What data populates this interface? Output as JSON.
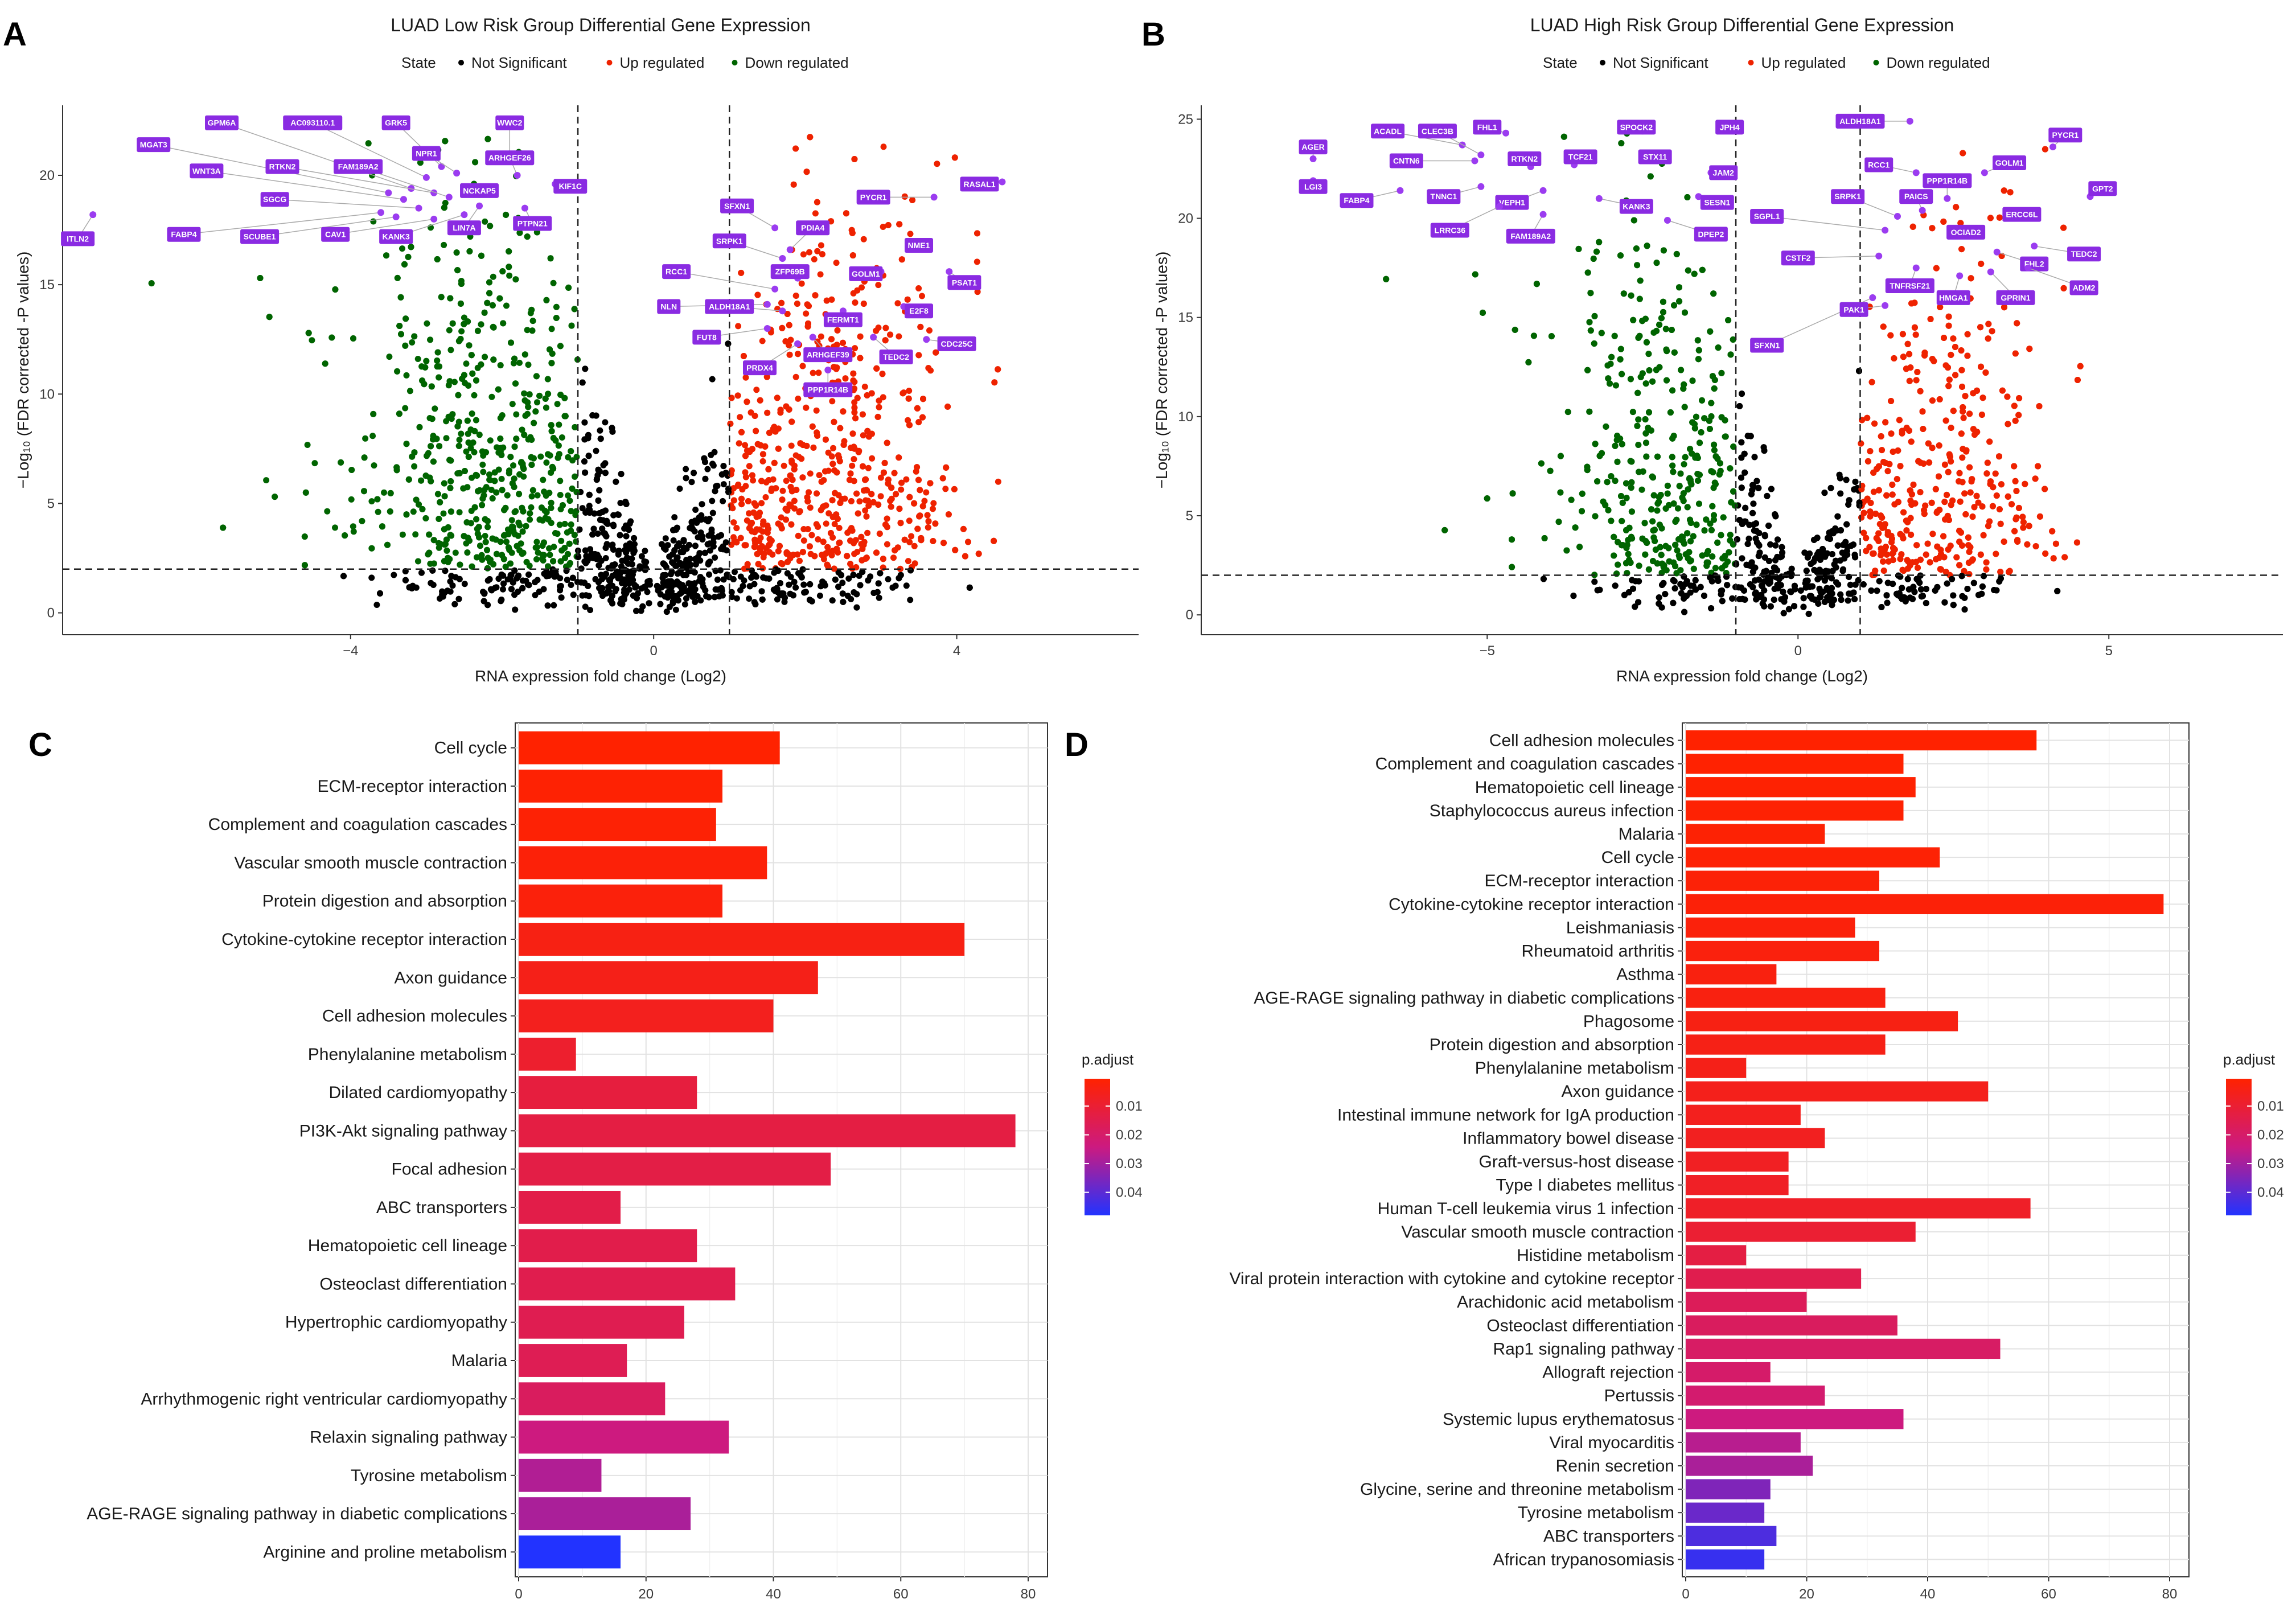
{
  "panels": [
    "A",
    "B",
    "C",
    "D"
  ],
  "chart_data": [
    {
      "type": "scatter",
      "panel": "A",
      "title": "LUAD Low Risk Group Differential Gene Expression",
      "xlabel": "RNA expression fold change (Log2)",
      "ylabel": "−Log₁₀ (FDR corrected -P values)",
      "xlim": [
        -7.8,
        6.4
      ],
      "ylim": [
        -1,
        23.2
      ],
      "xticks": [
        -4,
        0,
        4
      ],
      "yticks": [
        0,
        5,
        10,
        15,
        20
      ],
      "thresholds": {
        "x": [
          -1,
          1
        ],
        "y": 2
      },
      "legend": {
        "title": "State",
        "entries": [
          "Not Significant",
          "Up regulated",
          "Down regulated"
        ],
        "colors": [
          "#000000",
          "#ee2200",
          "#006400"
        ]
      },
      "labeled_genes": [
        {
          "gene": "GPM6A",
          "x": -3.2,
          "y": 19.4,
          "lx": -5.7,
          "ly": 22.4
        },
        {
          "gene": "AC093110.1",
          "x": -3.0,
          "y": 19.9,
          "lx": -4.5,
          "ly": 22.4
        },
        {
          "gene": "GRK5",
          "x": -2.8,
          "y": 20.4,
          "lx": -3.4,
          "ly": 22.4
        },
        {
          "gene": "WWC2",
          "x": -1.9,
          "y": 20.7,
          "lx": -1.9,
          "ly": 22.4
        },
        {
          "gene": "MGAT3",
          "x": -3.5,
          "y": 19.2,
          "lx": -6.6,
          "ly": 21.4
        },
        {
          "gene": "NPR1",
          "x": -2.6,
          "y": 20.1,
          "lx": -3.0,
          "ly": 21.0
        },
        {
          "gene": "WNT3A",
          "x": -3.3,
          "y": 18.9,
          "lx": -5.9,
          "ly": 20.2
        },
        {
          "gene": "RTKN2",
          "x": -2.9,
          "y": 19.2,
          "lx": -4.9,
          "ly": 20.4
        },
        {
          "gene": "FAM189A2",
          "x": -2.7,
          "y": 19.0,
          "lx": -3.9,
          "ly": 20.4
        },
        {
          "gene": "ARHGEF26",
          "x": -1.8,
          "y": 20.0,
          "lx": -1.9,
          "ly": 20.8
        },
        {
          "gene": "KIF1C",
          "x": -1.3,
          "y": 19.6,
          "lx": -1.1,
          "ly": 19.5
        },
        {
          "gene": "NCKAP5",
          "x": -2.1,
          "y": 19.4,
          "lx": -2.3,
          "ly": 19.3
        },
        {
          "gene": "SGCG",
          "x": -3.1,
          "y": 18.5,
          "lx": -5.0,
          "ly": 18.9
        },
        {
          "gene": "PTPN21",
          "x": -1.7,
          "y": 18.5,
          "lx": -1.6,
          "ly": 17.8
        },
        {
          "gene": "FABP4",
          "x": -3.6,
          "y": 18.3,
          "lx": -6.2,
          "ly": 17.3
        },
        {
          "gene": "SCUBE1",
          "x": -3.4,
          "y": 18.1,
          "lx": -5.2,
          "ly": 17.2
        },
        {
          "gene": "CAV1",
          "x": -2.9,
          "y": 18.0,
          "lx": -4.2,
          "ly": 17.3
        },
        {
          "gene": "KANK3",
          "x": -2.5,
          "y": 18.2,
          "lx": -3.4,
          "ly": 17.2
        },
        {
          "gene": "LIN7A",
          "x": -2.3,
          "y": 18.6,
          "lx": -2.5,
          "ly": 17.6
        },
        {
          "gene": "ITLN2",
          "x": -7.4,
          "y": 18.2,
          "lx": -7.6,
          "ly": 17.1
        },
        {
          "gene": "SFXN1",
          "x": 1.6,
          "y": 17.6,
          "lx": 1.1,
          "ly": 18.6
        },
        {
          "gene": "PDIA4",
          "x": 1.8,
          "y": 16.6,
          "lx": 2.1,
          "ly": 17.6
        },
        {
          "gene": "PYCR1",
          "x": 3.7,
          "y": 19.0,
          "lx": 2.9,
          "ly": 19.0
        },
        {
          "gene": "RASAL1",
          "x": 4.6,
          "y": 19.7,
          "lx": 4.3,
          "ly": 19.6
        },
        {
          "gene": "SRPK1",
          "x": 1.7,
          "y": 16.2,
          "lx": 1.0,
          "ly": 17.0
        },
        {
          "gene": "NME1",
          "x": 3.6,
          "y": 16.8,
          "lx": 3.5,
          "ly": 16.8
        },
        {
          "gene": "ZFP69B",
          "x": 1.9,
          "y": 15.3,
          "lx": 1.8,
          "ly": 15.6
        },
        {
          "gene": "GOLM1",
          "x": 3.0,
          "y": 15.6,
          "lx": 2.8,
          "ly": 15.5
        },
        {
          "gene": "RCC1",
          "x": 1.6,
          "y": 14.8,
          "lx": 0.3,
          "ly": 15.6
        },
        {
          "gene": "PSAT1",
          "x": 3.9,
          "y": 15.6,
          "lx": 4.1,
          "ly": 15.1
        },
        {
          "gene": "NLN",
          "x": 1.5,
          "y": 14.1,
          "lx": 0.2,
          "ly": 14.0
        },
        {
          "gene": "ALDH18A1",
          "x": 1.7,
          "y": 13.8,
          "lx": 1.0,
          "ly": 14.0
        },
        {
          "gene": "FERMT1",
          "x": 2.5,
          "y": 13.8,
          "lx": 2.5,
          "ly": 13.4
        },
        {
          "gene": "E2F8",
          "x": 3.3,
          "y": 14.0,
          "lx": 3.5,
          "ly": 13.8
        },
        {
          "gene": "FUT8",
          "x": 1.5,
          "y": 13.0,
          "lx": 0.7,
          "ly": 12.6
        },
        {
          "gene": "ARHGEF39",
          "x": 2.1,
          "y": 12.6,
          "lx": 2.3,
          "ly": 11.8
        },
        {
          "gene": "TEDC2",
          "x": 2.9,
          "y": 12.6,
          "lx": 3.2,
          "ly": 11.7
        },
        {
          "gene": "CDC25C",
          "x": 3.6,
          "y": 12.5,
          "lx": 4.0,
          "ly": 12.3
        },
        {
          "gene": "PRDX4",
          "x": 1.9,
          "y": 12.3,
          "lx": 1.4,
          "ly": 11.2
        },
        {
          "gene": "PPP1R14B",
          "x": 2.3,
          "y": 11.1,
          "lx": 2.3,
          "ly": 10.2
        }
      ]
    },
    {
      "type": "scatter",
      "panel": "B",
      "title": "LUAD High Risk Group Differential Gene Expression",
      "xlabel": "RNA expression fold change (Log2)",
      "ylabel": "−Log₁₀ (FDR corrected -P values)",
      "xlim": [
        -9.6,
        7.8
      ],
      "ylim": [
        -1,
        25.7
      ],
      "xticks": [
        -5,
        0,
        5
      ],
      "yticks": [
        0,
        5,
        10,
        15,
        20,
        25
      ],
      "thresholds": {
        "x": [
          -1,
          1
        ],
        "y": 2
      },
      "legend": {
        "title": "State",
        "entries": [
          "Not Significant",
          "Up regulated",
          "Down regulated"
        ],
        "colors": [
          "#000000",
          "#ee2200",
          "#006400"
        ]
      },
      "labeled_genes": [
        {
          "gene": "AGER",
          "x": -7.8,
          "y": 23.0,
          "lx": -7.8,
          "ly": 23.6
        },
        {
          "gene": "LGI3",
          "x": -7.8,
          "y": 21.9,
          "lx": -7.8,
          "ly": 21.6
        },
        {
          "gene": "ACADL",
          "x": -5.4,
          "y": 23.7,
          "lx": -6.6,
          "ly": 24.4
        },
        {
          "gene": "CLEC3B",
          "x": -5.1,
          "y": 23.2,
          "lx": -5.8,
          "ly": 24.4
        },
        {
          "gene": "FHL1",
          "x": -4.7,
          "y": 24.3,
          "lx": -5.0,
          "ly": 24.6
        },
        {
          "gene": "SPOCK2",
          "x": -2.5,
          "y": 24.4,
          "lx": -2.6,
          "ly": 24.6
        },
        {
          "gene": "JPH4",
          "x": -1.2,
          "y": 24.6,
          "lx": -1.1,
          "ly": 24.6
        },
        {
          "gene": "CNTN6",
          "x": -5.2,
          "y": 22.9,
          "lx": -6.3,
          "ly": 22.9
        },
        {
          "gene": "RTKN2",
          "x": -4.3,
          "y": 22.6,
          "lx": -4.4,
          "ly": 23.0
        },
        {
          "gene": "TCF21",
          "x": -3.6,
          "y": 22.7,
          "lx": -3.5,
          "ly": 23.1
        },
        {
          "gene": "STX11",
          "x": -2.5,
          "y": 23.0,
          "lx": -2.3,
          "ly": 23.1
        },
        {
          "gene": "JAM2",
          "x": -1.4,
          "y": 22.3,
          "lx": -1.2,
          "ly": 22.3
        },
        {
          "gene": "FABP4",
          "x": -6.4,
          "y": 21.4,
          "lx": -7.1,
          "ly": 20.9
        },
        {
          "gene": "TNNC1",
          "x": -5.1,
          "y": 21.6,
          "lx": -5.7,
          "ly": 21.1
        },
        {
          "gene": "VEPH1",
          "x": -4.1,
          "y": 21.4,
          "lx": -4.6,
          "ly": 20.8
        },
        {
          "gene": "KANK3",
          "x": -3.2,
          "y": 21.0,
          "lx": -2.6,
          "ly": 20.6
        },
        {
          "gene": "SESN1",
          "x": -1.6,
          "y": 21.1,
          "lx": -1.3,
          "ly": 20.8
        },
        {
          "gene": "LRRC36",
          "x": -4.8,
          "y": 20.6,
          "lx": -5.6,
          "ly": 19.4
        },
        {
          "gene": "FAM189A2",
          "x": -4.1,
          "y": 20.2,
          "lx": -4.3,
          "ly": 19.1
        },
        {
          "gene": "DPEP2",
          "x": -2.1,
          "y": 19.9,
          "lx": -1.4,
          "ly": 19.2
        },
        {
          "gene": "SFXN1",
          "x": 1.2,
          "y": 16.0,
          "lx": -0.5,
          "ly": 13.6
        },
        {
          "gene": "ALDH18A1",
          "x": 1.8,
          "y": 24.9,
          "lx": 1.0,
          "ly": 24.9
        },
        {
          "gene": "PYCR1",
          "x": 4.1,
          "y": 23.6,
          "lx": 4.3,
          "ly": 24.2
        },
        {
          "gene": "RCC1",
          "x": 1.9,
          "y": 22.3,
          "lx": 1.3,
          "ly": 22.7
        },
        {
          "gene": "GOLM1",
          "x": 3.0,
          "y": 22.3,
          "lx": 3.4,
          "ly": 22.8
        },
        {
          "gene": "PPP1R14B",
          "x": 2.4,
          "y": 21.0,
          "lx": 2.4,
          "ly": 21.9
        },
        {
          "gene": "GPT2",
          "x": 4.7,
          "y": 21.1,
          "lx": 4.9,
          "ly": 21.5
        },
        {
          "gene": "SRPK1",
          "x": 1.6,
          "y": 20.1,
          "lx": 0.8,
          "ly": 21.1
        },
        {
          "gene": "PAICS",
          "x": 2.0,
          "y": 20.4,
          "lx": 1.9,
          "ly": 21.1
        },
        {
          "gene": "SGPL1",
          "x": 1.4,
          "y": 19.4,
          "lx": -0.5,
          "ly": 20.1
        },
        {
          "gene": "ERCC6L",
          "x": 3.6,
          "y": 20.0,
          "lx": 3.6,
          "ly": 20.2
        },
        {
          "gene": "OCIAD2",
          "x": 2.6,
          "y": 19.2,
          "lx": 2.7,
          "ly": 19.3
        },
        {
          "gene": "CSTF2",
          "x": 1.3,
          "y": 18.1,
          "lx": 0.0,
          "ly": 18.0
        },
        {
          "gene": "FHL2",
          "x": 3.2,
          "y": 18.3,
          "lx": 3.8,
          "ly": 17.7
        },
        {
          "gene": "TEDC2",
          "x": 3.8,
          "y": 18.6,
          "lx": 4.6,
          "ly": 18.2
        },
        {
          "gene": "TNFRSF21",
          "x": 1.9,
          "y": 17.5,
          "lx": 1.8,
          "ly": 16.6
        },
        {
          "gene": "HMGA1",
          "x": 2.6,
          "y": 17.1,
          "lx": 2.5,
          "ly": 16.0
        },
        {
          "gene": "GPRIN1",
          "x": 3.1,
          "y": 17.3,
          "lx": 3.5,
          "ly": 16.0
        },
        {
          "gene": "ADM2",
          "x": 3.7,
          "y": 17.5,
          "lx": 4.6,
          "ly": 16.5
        },
        {
          "gene": "PAK1",
          "x": 1.4,
          "y": 15.6,
          "lx": 0.9,
          "ly": 15.4
        }
      ]
    },
    {
      "type": "bar",
      "panel": "C",
      "orientation": "horizontal",
      "categories": [
        "Cell cycle",
        "ECM-receptor interaction",
        "Complement and coagulation cascades",
        "Vascular smooth muscle contraction",
        "Protein digestion and absorption",
        "Cytokine-cytokine receptor interaction",
        "Axon guidance",
        "Cell adhesion molecules",
        "Phenylalanine metabolism",
        "Dilated cardiomyopathy",
        "PI3K-Akt signaling pathway",
        "Focal adhesion",
        "ABC transporters",
        "Hematopoietic cell lineage",
        "Osteoclast differentiation",
        "Hypertrophic cardiomyopathy",
        "Malaria",
        "Arrhythmogenic right ventricular cardiomyopathy",
        "Relaxin signaling pathway",
        "Tyrosine metabolism",
        "AGE-RAGE signaling pathway in diabetic complications",
        "Arginine and proline metabolism"
      ],
      "values": [
        41,
        32,
        31,
        39,
        32,
        70,
        47,
        40,
        9,
        28,
        78,
        49,
        16,
        28,
        34,
        26,
        17,
        23,
        33,
        13,
        27,
        16
      ],
      "p_adjust": [
        0.0005,
        0.001,
        0.0015,
        0.002,
        0.0025,
        0.004,
        0.005,
        0.006,
        0.009,
        0.012,
        0.013,
        0.0135,
        0.014,
        0.0145,
        0.015,
        0.0155,
        0.016,
        0.018,
        0.024,
        0.028,
        0.029,
        0.048
      ],
      "xlim": [
        0,
        80
      ],
      "xticks": [
        0,
        20,
        40,
        60,
        80
      ],
      "legend": {
        "title": "p.adjust",
        "ticks": [
          0.01,
          0.02,
          0.03,
          0.04
        ],
        "range": [
          0.0005,
          0.048
        ]
      }
    },
    {
      "type": "bar",
      "panel": "D",
      "orientation": "horizontal",
      "categories": [
        "Cell adhesion molecules",
        "Complement and coagulation cascades",
        "Hematopoietic cell lineage",
        "Staphylococcus aureus infection",
        "Malaria",
        "Cell cycle",
        "ECM-receptor interaction",
        "Cytokine-cytokine receptor interaction",
        "Leishmaniasis",
        "Rheumatoid arthritis",
        "Asthma",
        "AGE-RAGE signaling pathway in diabetic complications",
        "Phagosome",
        "Protein digestion and absorption",
        "Phenylalanine metabolism",
        "Axon guidance",
        "Intestinal immune network for IgA production",
        "Inflammatory bowel disease",
        "Graft-versus-host disease",
        "Type I diabetes mellitus",
        "Human T-cell leukemia virus 1 infection",
        "Vascular smooth muscle contraction",
        "Histidine metabolism",
        "Viral protein interaction with cytokine and cytokine receptor",
        "Arachidonic acid metabolism",
        "Osteoclast differentiation",
        "Rap1 signaling pathway",
        "Allograft rejection",
        "Pertussis",
        "Systemic lupus erythematosus",
        "Viral myocarditis",
        "Renin secretion",
        "Glycine, serine and threonine metabolism",
        "Tyrosine metabolism",
        "ABC transporters",
        "African trypanosomiasis"
      ],
      "values": [
        58,
        36,
        38,
        36,
        23,
        42,
        32,
        79,
        28,
        32,
        15,
        33,
        45,
        33,
        10,
        50,
        19,
        23,
        17,
        17,
        57,
        38,
        10,
        29,
        20,
        35,
        52,
        14,
        23,
        36,
        19,
        21,
        14,
        13,
        15,
        13
      ],
      "p_adjust": [
        0.0005,
        0.0007,
        0.0009,
        0.001,
        0.0012,
        0.0015,
        0.0018,
        0.002,
        0.0025,
        0.003,
        0.0033,
        0.0035,
        0.004,
        0.0045,
        0.005,
        0.0055,
        0.006,
        0.0065,
        0.007,
        0.0075,
        0.008,
        0.01,
        0.013,
        0.015,
        0.017,
        0.018,
        0.019,
        0.02,
        0.021,
        0.024,
        0.027,
        0.029,
        0.035,
        0.038,
        0.042,
        0.045
      ],
      "xlim": [
        0,
        80
      ],
      "xticks": [
        0,
        20,
        40,
        60,
        80
      ],
      "legend": {
        "title": "p.adjust",
        "ticks": [
          0.01,
          0.02,
          0.03,
          0.04
        ],
        "range": [
          0.0005,
          0.048
        ]
      }
    }
  ]
}
